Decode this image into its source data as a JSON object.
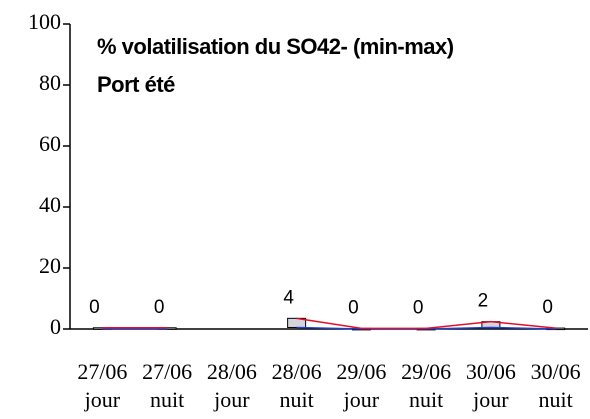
{
  "chart_data": {
    "type": "minmax",
    "title": "% volatilisation du SO42- (min-max)",
    "subtitle": "Port été",
    "categories": [
      [
        "27/06",
        "jour"
      ],
      [
        "27/06",
        "nuit"
      ],
      [
        "28/06",
        "jour"
      ],
      [
        "28/06",
        "nuit"
      ],
      [
        "29/06",
        "jour"
      ],
      [
        "29/06",
        "nuit"
      ],
      [
        "30/06",
        "jour"
      ],
      [
        "30/06",
        "nuit"
      ]
    ],
    "series": [
      {
        "color": "#1f3fcf",
        "values": [
          0,
          0,
          null,
          0.5,
          0,
          0,
          0.5,
          0
        ]
      },
      {
        "color": "#e0102a",
        "values": [
          0.4,
          0.4,
          null,
          3.5,
          0.2,
          0.2,
          2.4,
          0.3
        ],
        "value_labels": [
          "0",
          "0",
          null,
          "4",
          "0",
          "0",
          "2",
          "0"
        ]
      }
    ],
    "box_color": "#d4d4dc",
    "ylim": [
      0,
      100
    ],
    "yticks": [
      0,
      20,
      40,
      60,
      80,
      100
    ]
  }
}
